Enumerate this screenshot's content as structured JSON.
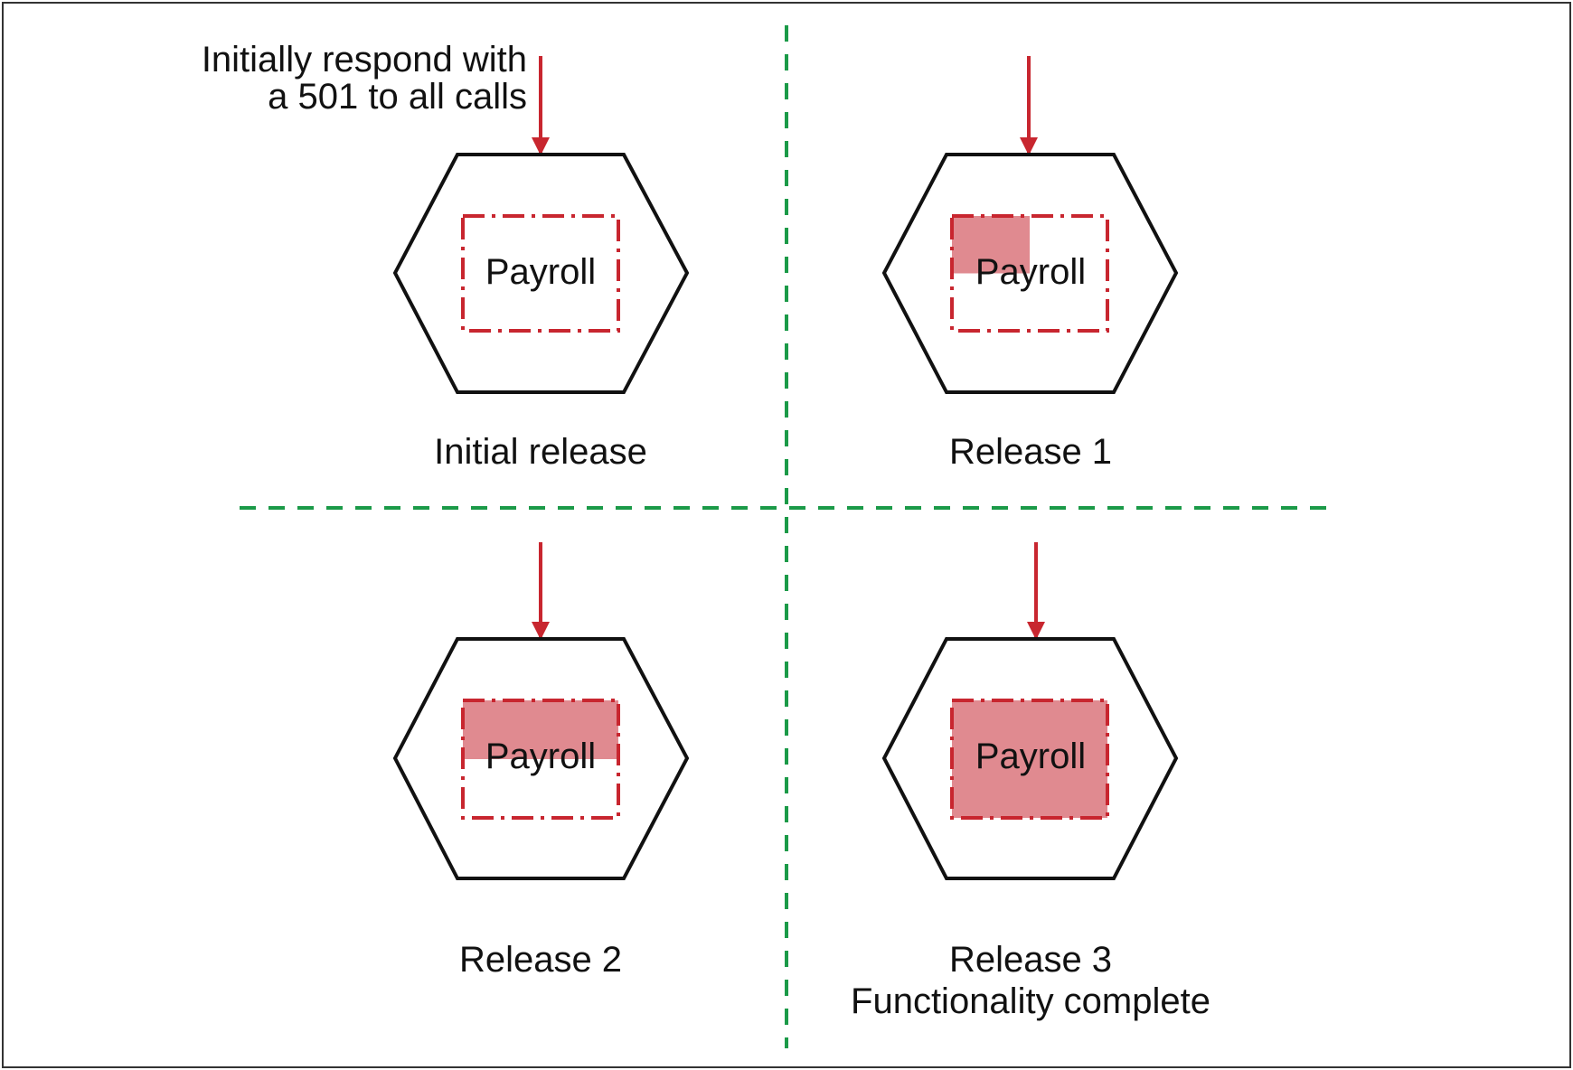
{
  "annotation": {
    "line1": "Initially respond with",
    "line2": "a 501 to all calls"
  },
  "panels": [
    {
      "id": "initial",
      "box_label": "Payroll",
      "caption": [
        "Initial release"
      ],
      "implemented_fraction": 0.0
    },
    {
      "id": "release-1",
      "box_label": "Payroll",
      "caption": [
        "Release 1"
      ],
      "implemented_fraction": 0.25
    },
    {
      "id": "release-2",
      "box_label": "Payroll",
      "caption": [
        "Release 2"
      ],
      "implemented_fraction": 0.5
    },
    {
      "id": "release-3",
      "box_label": "Payroll",
      "caption": [
        "Release 3",
        "Functionality complete"
      ],
      "implemented_fraction": 1.0
    }
  ],
  "colors": {
    "frame": "#333333",
    "hexagon_stroke": "#111111",
    "service_box_stroke": "#c8262f",
    "implemented_fill": "#e08a90",
    "arrow": "#c8262f",
    "divider": "#1b9a48"
  }
}
